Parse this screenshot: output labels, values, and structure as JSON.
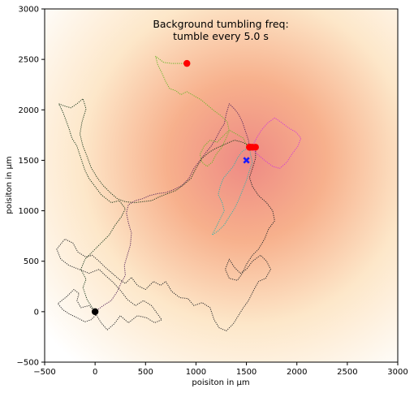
{
  "chart_data": {
    "type": "scatter",
    "title_lines": [
      "Background tumbling freq:",
      "tumble every 5.0 s"
    ],
    "xlabel": "poisiton in μm",
    "ylabel": "poisiton in μm",
    "xlim": [
      -500,
      3000
    ],
    "ylim": [
      -500,
      3000
    ],
    "x_ticks": [
      -500,
      0,
      500,
      1000,
      1500,
      2000,
      2500,
      3000
    ],
    "y_ticks": [
      -500,
      0,
      500,
      1000,
      1500,
      2000,
      2500,
      3000
    ],
    "background": {
      "kind": "radial-gradient",
      "center": [
        1500,
        1500
      ],
      "colors": [
        "#ee8a84",
        "#f7b08c",
        "#fde7c9",
        "#ffffff"
      ]
    },
    "target_marker": {
      "x": 1500,
      "y": 1500,
      "color": "#1a1aff",
      "shape": "x"
    },
    "start_marker": {
      "x": 0,
      "y": 0,
      "color": "#000000"
    },
    "series": [
      {
        "color": "#2a2a2a",
        "end": [
          1590,
          1630
        ],
        "points": [
          [
            0,
            0
          ],
          [
            -60,
            60
          ],
          [
            -140,
            40
          ],
          [
            -180,
            110
          ],
          [
            -160,
            180
          ],
          [
            -210,
            220
          ],
          [
            -280,
            150
          ],
          [
            -370,
            80
          ],
          [
            -320,
            20
          ],
          [
            -260,
            -20
          ],
          [
            -180,
            -60
          ],
          [
            -100,
            -100
          ],
          [
            -40,
            -80
          ],
          [
            10,
            -30
          ],
          [
            60,
            -110
          ],
          [
            120,
            -180
          ],
          [
            190,
            -120
          ],
          [
            250,
            -40
          ],
          [
            330,
            -110
          ],
          [
            420,
            -40
          ],
          [
            510,
            -60
          ],
          [
            590,
            -110
          ],
          [
            660,
            -80
          ],
          [
            610,
            -10
          ],
          [
            560,
            60
          ],
          [
            480,
            110
          ],
          [
            400,
            60
          ],
          [
            320,
            120
          ],
          [
            260,
            200
          ],
          [
            180,
            290
          ],
          [
            100,
            360
          ],
          [
            40,
            420
          ],
          [
            -60,
            380
          ],
          [
            -160,
            420
          ],
          [
            -260,
            460
          ],
          [
            -340,
            520
          ],
          [
            -380,
            620
          ],
          [
            -300,
            720
          ],
          [
            -220,
            680
          ],
          [
            -170,
            590
          ],
          [
            -90,
            540
          ],
          [
            -30,
            560
          ],
          [
            40,
            500
          ],
          [
            100,
            440
          ],
          [
            170,
            380
          ],
          [
            240,
            320
          ],
          [
            300,
            280
          ],
          [
            360,
            340
          ],
          [
            420,
            260
          ],
          [
            500,
            220
          ],
          [
            580,
            300
          ],
          [
            650,
            260
          ],
          [
            700,
            300
          ],
          [
            760,
            200
          ],
          [
            840,
            140
          ],
          [
            920,
            130
          ],
          [
            980,
            60
          ],
          [
            1060,
            90
          ],
          [
            1140,
            40
          ],
          [
            1180,
            -80
          ],
          [
            1230,
            -160
          ],
          [
            1300,
            -190
          ],
          [
            1370,
            -120
          ],
          [
            1420,
            -40
          ],
          [
            1470,
            40
          ],
          [
            1520,
            110
          ],
          [
            1570,
            210
          ],
          [
            1620,
            300
          ],
          [
            1690,
            330
          ],
          [
            1740,
            420
          ],
          [
            1700,
            500
          ],
          [
            1640,
            560
          ],
          [
            1560,
            500
          ],
          [
            1500,
            420
          ],
          [
            1440,
            380
          ],
          [
            1380,
            440
          ],
          [
            1330,
            520
          ],
          [
            1290,
            420
          ],
          [
            1330,
            330
          ],
          [
            1410,
            310
          ],
          [
            1460,
            380
          ],
          [
            1500,
            470
          ],
          [
            1560,
            560
          ],
          [
            1620,
            620
          ],
          [
            1680,
            720
          ],
          [
            1720,
            820
          ],
          [
            1780,
            900
          ],
          [
            1760,
            1000
          ],
          [
            1700,
            1080
          ],
          [
            1620,
            1150
          ],
          [
            1560,
            1240
          ],
          [
            1530,
            1330
          ],
          [
            1560,
            1420
          ],
          [
            1590,
            1520
          ],
          [
            1590,
            1630
          ]
        ]
      },
      {
        "color": "#1f3b1e",
        "end": [
          1560,
          1630
        ],
        "points": [
          [
            0,
            0
          ],
          [
            -80,
            120
          ],
          [
            -120,
            240
          ],
          [
            -90,
            320
          ],
          [
            -140,
            420
          ],
          [
            -100,
            520
          ],
          [
            -20,
            600
          ],
          [
            60,
            680
          ],
          [
            140,
            760
          ],
          [
            200,
            860
          ],
          [
            260,
            940
          ],
          [
            300,
            1020
          ],
          [
            240,
            1100
          ],
          [
            160,
            1080
          ],
          [
            60,
            1160
          ],
          [
            0,
            1240
          ],
          [
            -60,
            1320
          ],
          [
            -100,
            1400
          ],
          [
            -140,
            1520
          ],
          [
            -180,
            1640
          ],
          [
            -230,
            1720
          ],
          [
            -260,
            1820
          ],
          [
            -290,
            1900
          ],
          [
            -320,
            1980
          ],
          [
            -360,
            2060
          ],
          [
            -310,
            2040
          ],
          [
            -240,
            2020
          ],
          [
            -180,
            2060
          ],
          [
            -120,
            2110
          ],
          [
            -90,
            2010
          ],
          [
            -130,
            1880
          ],
          [
            -150,
            1760
          ],
          [
            -120,
            1640
          ],
          [
            -80,
            1540
          ],
          [
            -40,
            1430
          ],
          [
            20,
            1330
          ],
          [
            80,
            1250
          ],
          [
            150,
            1180
          ],
          [
            220,
            1120
          ],
          [
            300,
            1090
          ],
          [
            390,
            1080
          ],
          [
            470,
            1090
          ],
          [
            560,
            1100
          ],
          [
            640,
            1140
          ],
          [
            720,
            1170
          ],
          [
            800,
            1200
          ],
          [
            880,
            1260
          ],
          [
            950,
            1320
          ],
          [
            1000,
            1420
          ],
          [
            1060,
            1520
          ],
          [
            1130,
            1580
          ],
          [
            1200,
            1620
          ],
          [
            1290,
            1660
          ],
          [
            1380,
            1700
          ],
          [
            1460,
            1680
          ],
          [
            1520,
            1650
          ],
          [
            1560,
            1630
          ]
        ]
      },
      {
        "color": "#5a2a5c",
        "end": [
          1530,
          1630
        ],
        "points": [
          [
            0,
            0
          ],
          [
            80,
            60
          ],
          [
            160,
            110
          ],
          [
            220,
            200
          ],
          [
            260,
            290
          ],
          [
            300,
            360
          ],
          [
            290,
            460
          ],
          [
            320,
            560
          ],
          [
            350,
            660
          ],
          [
            360,
            780
          ],
          [
            330,
            880
          ],
          [
            310,
            980
          ],
          [
            330,
            1060
          ],
          [
            400,
            1100
          ],
          [
            470,
            1120
          ],
          [
            540,
            1150
          ],
          [
            620,
            1170
          ],
          [
            700,
            1180
          ],
          [
            780,
            1210
          ],
          [
            860,
            1250
          ],
          [
            930,
            1320
          ],
          [
            980,
            1420
          ],
          [
            1040,
            1500
          ],
          [
            1100,
            1580
          ],
          [
            1150,
            1640
          ],
          [
            1200,
            1720
          ],
          [
            1240,
            1800
          ],
          [
            1280,
            1860
          ],
          [
            1300,
            1960
          ],
          [
            1330,
            2060
          ],
          [
            1380,
            2010
          ],
          [
            1420,
            1960
          ],
          [
            1460,
            1880
          ],
          [
            1490,
            1790
          ],
          [
            1520,
            1700
          ],
          [
            1530,
            1630
          ]
        ]
      },
      {
        "color": "#6cb42a",
        "end": [
          910,
          2460
        ],
        "points": [
          [
            1510,
            1630
          ],
          [
            1470,
            1720
          ],
          [
            1400,
            1760
          ],
          [
            1330,
            1800
          ],
          [
            1270,
            1740
          ],
          [
            1210,
            1680
          ],
          [
            1140,
            1700
          ],
          [
            1080,
            1640
          ],
          [
            1040,
            1560
          ],
          [
            1060,
            1480
          ],
          [
            1110,
            1440
          ],
          [
            1160,
            1480
          ],
          [
            1200,
            1560
          ],
          [
            1250,
            1620
          ],
          [
            1290,
            1700
          ],
          [
            1330,
            1790
          ],
          [
            1310,
            1880
          ],
          [
            1250,
            1940
          ],
          [
            1180,
            1990
          ],
          [
            1110,
            2050
          ],
          [
            1050,
            2100
          ],
          [
            980,
            2140
          ],
          [
            910,
            2180
          ],
          [
            850,
            2150
          ],
          [
            800,
            2190
          ],
          [
            740,
            2210
          ],
          [
            700,
            2280
          ],
          [
            660,
            2370
          ],
          [
            620,
            2450
          ],
          [
            600,
            2530
          ],
          [
            680,
            2470
          ],
          [
            760,
            2460
          ],
          [
            840,
            2460
          ],
          [
            910,
            2460
          ]
        ]
      },
      {
        "color": "#34b3aa",
        "end": [
          1530,
          1630
        ],
        "points": [
          [
            1530,
            1630
          ],
          [
            1460,
            1590
          ],
          [
            1410,
            1520
          ],
          [
            1370,
            1440
          ],
          [
            1320,
            1380
          ],
          [
            1270,
            1320
          ],
          [
            1240,
            1240
          ],
          [
            1220,
            1160
          ],
          [
            1260,
            1080
          ],
          [
            1280,
            1000
          ],
          [
            1240,
            920
          ],
          [
            1200,
            840
          ],
          [
            1160,
            760
          ],
          [
            1220,
            800
          ],
          [
            1280,
            860
          ],
          [
            1330,
            940
          ],
          [
            1380,
            1020
          ],
          [
            1420,
            1100
          ],
          [
            1460,
            1200
          ],
          [
            1500,
            1300
          ],
          [
            1530,
            1400
          ],
          [
            1560,
            1480
          ],
          [
            1540,
            1560
          ],
          [
            1530,
            1630
          ]
        ]
      },
      {
        "color": "#d23cd2",
        "end": [
          1540,
          1630
        ],
        "points": [
          [
            1540,
            1630
          ],
          [
            1610,
            1560
          ],
          [
            1680,
            1500
          ],
          [
            1760,
            1440
          ],
          [
            1830,
            1420
          ],
          [
            1900,
            1480
          ],
          [
            1950,
            1560
          ],
          [
            2010,
            1640
          ],
          [
            2040,
            1720
          ],
          [
            1990,
            1780
          ],
          [
            1920,
            1820
          ],
          [
            1840,
            1880
          ],
          [
            1780,
            1920
          ],
          [
            1710,
            1870
          ],
          [
            1650,
            1800
          ],
          [
            1600,
            1720
          ],
          [
            1560,
            1640
          ],
          [
            1540,
            1630
          ]
        ]
      }
    ]
  }
}
